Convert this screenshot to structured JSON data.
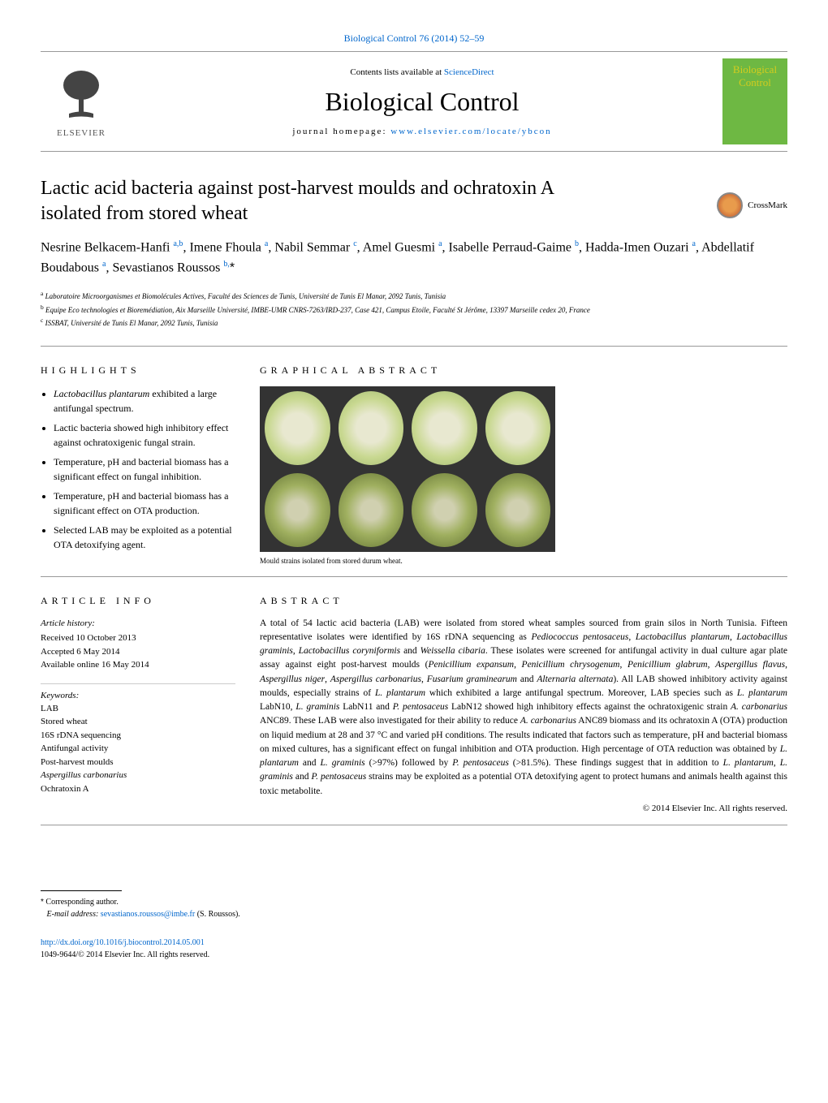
{
  "top_link": "Biological Control 76 (2014) 52–59",
  "header": {
    "contents_prefix": "Contents lists available at ",
    "contents_link": "ScienceDirect",
    "journal_name": "Biological Control",
    "homepage_prefix": "journal homepage: ",
    "homepage_link": "www.elsevier.com/locate/ybcon",
    "publisher": "ELSEVIER",
    "cover_line1": "Biological",
    "cover_line2": "Control"
  },
  "crossmark_label": "CrossMark",
  "title": "Lactic acid bacteria against post-harvest moulds and ochratoxin A isolated from stored wheat",
  "authors_html": "Nesrine Belkacem-Hanfi <sup>a,b</sup>, Imene Fhoula <sup>a</sup>, Nabil Semmar <sup>c</sup>, Amel Guesmi <sup>a</sup>, Isabelle Perraud-Gaime <sup>b</sup>, Hadda-Imen Ouzari <sup>a</sup>, Abdellatif Boudabous <sup>a</sup>, Sevastianos Roussos <sup>b,</sup><span class='sup-star'>*</span>",
  "affiliations": {
    "a": "Laboratoire Microorganismes et Biomolécules Actives, Faculté des Sciences de Tunis, Université de Tunis El Manar, 2092 Tunis, Tunisia",
    "b": "Equipe Eco technologies et Bioremédiation, Aix Marseille Université, IMBE-UMR CNRS-7263/IRD-237, Case 421, Campus Etoile, Faculté St Jérôme, 13397 Marseille cedex 20, France",
    "c": "ISSBAT, Université de Tunis El Manar, 2092 Tunis, Tunisia"
  },
  "headings": {
    "highlights": "HIGHLIGHTS",
    "graphical": "GRAPHICAL ABSTRACT",
    "article_info": "ARTICLE INFO",
    "abstract": "ABSTRACT"
  },
  "highlights": [
    "Lactobacillus plantarum exhibited a large antifungal spectrum.",
    "Lactic bacteria showed high inhibitory effect against ochratoxigenic fungal strain.",
    "Temperature, pH and bacterial biomass has a significant effect on fungal inhibition.",
    "Temperature, pH and bacterial biomass has a significant effect on OTA production.",
    "Selected LAB may be exploited as a potential OTA detoxifying agent."
  ],
  "graphical_caption": "Mould strains isolated from stored durum wheat.",
  "article_info": {
    "history_label": "Article history:",
    "received": "Received 10 October 2013",
    "accepted": "Accepted 6 May 2014",
    "online": "Available online 16 May 2014",
    "keywords_label": "Keywords:",
    "keywords": [
      "LAB",
      "Stored wheat",
      "16S rDNA sequencing",
      "Antifungal activity",
      "Post-harvest moulds",
      "Aspergillus carbonarius",
      "Ochratoxin A"
    ]
  },
  "abstract": "A total of 54 lactic acid bacteria (LAB) were isolated from stored wheat samples sourced from grain silos in North Tunisia. Fifteen representative isolates were identified by 16S rDNA sequencing as Pediococcus pentosaceus, Lactobacillus plantarum, Lactobacillus graminis, Lactobacillus coryniformis and Weissella cibaria. These isolates were screened for antifungal activity in dual culture agar plate assay against eight post-harvest moulds (Penicillium expansum, Penicillium chrysogenum, Penicillium glabrum, Aspergillus flavus, Aspergillus niger, Aspergillus carbonarius, Fusarium graminearum and Alternaria alternata). All LAB showed inhibitory activity against moulds, especially strains of L. plantarum which exhibited a large antifungal spectrum. Moreover, LAB species such as L. plantarum LabN10, L. graminis LabN11 and P. pentosaceus LabN12 showed high inhibitory effects against the ochratoxigenic strain A. carbonarius ANC89. These LAB were also investigated for their ability to reduce A. carbonarius ANC89 biomass and its ochratoxin A (OTA) production on liquid medium at 28 and 37 °C and varied pH conditions. The results indicated that factors such as temperature, pH and bacterial biomass on mixed cultures, has a significant effect on fungal inhibition and OTA production. High percentage of OTA reduction was obtained by L. plantarum and L. graminis (>97%) followed by P. pentosaceus (>81.5%). These findings suggest that in addition to L. plantarum, L. graminis and P. pentosaceus strains may be exploited as a potential OTA detoxifying agent to protect humans and animals health against this toxic metabolite.",
  "copyright": "© 2014 Elsevier Inc. All rights reserved.",
  "footer": {
    "corresponding": "Corresponding author.",
    "email_label": "E-mail address: ",
    "email": "sevastianos.roussos@imbe.fr",
    "email_name": " (S. Roussos).",
    "doi": "http://dx.doi.org/10.1016/j.biocontrol.2014.05.001",
    "issn": "1049-9644/© 2014 Elsevier Inc. All rights reserved."
  },
  "colors": {
    "link": "#0066cc",
    "cover_bg": "#6eb843",
    "cover_text": "#d4cc1e",
    "rule": "#999999"
  }
}
